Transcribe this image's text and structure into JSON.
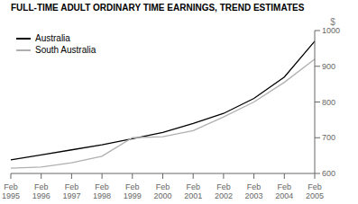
{
  "chart_data": {
    "type": "line",
    "title": "FULL-TIME ADULT ORDINARY TIME EARNINGS, TREND ESTIMATES",
    "ylabel": "$",
    "categories": [
      "Feb\n1995",
      "Feb\n1996",
      "Feb\n1997",
      "Feb\n1998",
      "Feb\n1999",
      "Feb\n2000",
      "Feb\n2001",
      "Feb\n2002",
      "Feb\n2003",
      "Feb\n2004",
      "Feb\n2005"
    ],
    "series": [
      {
        "name": "Australia",
        "color": "#000000",
        "values": [
          638,
          652,
          666,
          680,
          697,
          715,
          740,
          768,
          810,
          870,
          970
        ]
      },
      {
        "name": "South Australia",
        "color": "#b0b0b0",
        "values": [
          615,
          618,
          630,
          648,
          700,
          703,
          720,
          758,
          800,
          855,
          920
        ]
      }
    ],
    "ylim": [
      600,
      1000
    ],
    "yticks": [
      600,
      700,
      800,
      900,
      1000
    ],
    "grid": false,
    "legend": "upper left"
  }
}
